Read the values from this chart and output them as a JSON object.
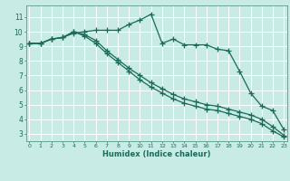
{
  "background_color": "#c8ebe5",
  "grid_color": "#ffffff",
  "line_color": "#1a6b5a",
  "xlabel": "Humidex (Indice chaleur)",
  "yticks": [
    3,
    4,
    5,
    6,
    7,
    8,
    9,
    10,
    11
  ],
  "xticks": [
    0,
    1,
    2,
    3,
    4,
    5,
    6,
    7,
    8,
    9,
    10,
    11,
    12,
    13,
    14,
    15,
    16,
    17,
    18,
    19,
    20,
    21,
    22,
    23
  ],
  "ylim": [
    2.5,
    11.8
  ],
  "xlim": [
    -0.3,
    23.3
  ],
  "series1_x": [
    0,
    1,
    2,
    3,
    4,
    5,
    6,
    7,
    8,
    9,
    10,
    11,
    12,
    13,
    14,
    15,
    16,
    17,
    18,
    19,
    20,
    21,
    22,
    23
  ],
  "series1_y": [
    9.2,
    9.2,
    9.5,
    9.6,
    9.9,
    10.0,
    10.1,
    10.1,
    10.1,
    10.5,
    10.8,
    11.2,
    9.2,
    9.5,
    9.1,
    9.1,
    9.1,
    8.8,
    8.7,
    7.3,
    5.8,
    4.9,
    4.6,
    3.3
  ],
  "series2_x": [
    0,
    1,
    2,
    3,
    4,
    5,
    6,
    7,
    8,
    9,
    10,
    11,
    12,
    13,
    14,
    15,
    16,
    17,
    18,
    19,
    20,
    21,
    22,
    23
  ],
  "series2_y": [
    9.2,
    9.2,
    9.5,
    9.6,
    10.0,
    9.8,
    9.4,
    8.7,
    8.1,
    7.5,
    7.0,
    6.5,
    6.1,
    5.7,
    5.4,
    5.2,
    5.0,
    4.9,
    4.7,
    4.5,
    4.3,
    4.0,
    3.5,
    2.9
  ],
  "series3_x": [
    0,
    1,
    2,
    3,
    4,
    5,
    6,
    7,
    8,
    9,
    10,
    11,
    12,
    13,
    14,
    15,
    16,
    17,
    18,
    19,
    20,
    21,
    22,
    23
  ],
  "series3_y": [
    9.2,
    9.2,
    9.5,
    9.6,
    10.0,
    9.7,
    9.2,
    8.5,
    7.9,
    7.3,
    6.7,
    6.2,
    5.8,
    5.4,
    5.1,
    4.9,
    4.7,
    4.6,
    4.4,
    4.2,
    4.0,
    3.7,
    3.2,
    2.8
  ]
}
